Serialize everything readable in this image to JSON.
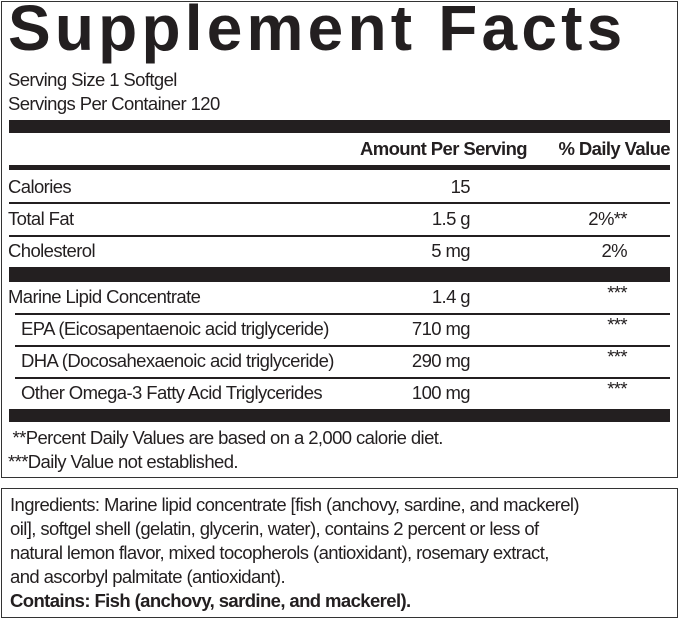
{
  "title": "Supplement Facts",
  "serving_size": "Serving Size 1 Softgel",
  "servings_per_container": "Servings Per Container 120",
  "header": {
    "amount": "Amount Per Serving",
    "dv": "% Daily Value"
  },
  "rows": [
    {
      "name": "Calories",
      "amount": "15",
      "dv": ""
    },
    {
      "name": "Total Fat",
      "amount": "1.5 g",
      "dv": "2%**"
    },
    {
      "name": "Cholesterol",
      "amount": "5 mg",
      "dv": "2%"
    },
    {
      "name": "Marine Lipid Concentrate",
      "amount": "1.4 g",
      "dv": "***"
    },
    {
      "name": "EPA (Eicosapentaenoic acid triglyceride)",
      "amount": "710 mg",
      "dv": "***"
    },
    {
      "name": "DHA (Docosahexaenoic acid triglyceride)",
      "amount": "290 mg",
      "dv": "***"
    },
    {
      "name": "Other Omega-3 Fatty Acid Triglycerides",
      "amount": "100 mg",
      "dv": "***"
    }
  ],
  "footnotes": [
    " **Percent Daily Values are based on a 2,000 calorie diet.",
    "***Daily Value not established."
  ],
  "ingredients": {
    "lines": [
      "Ingredients: Marine lipid concentrate [fish (anchovy, sardine, and mackerel)",
      "oil], softgel shell (gelatin, glycerin, water), contains 2 percent or less of",
      "natural lemon flavor, mixed tocopherols (antioxidant), rosemary extract,",
      "and ascorbyl palmitate (antioxidant)."
    ],
    "contains": "Contains: Fish (anchovy, sardine, and mackerel)."
  }
}
